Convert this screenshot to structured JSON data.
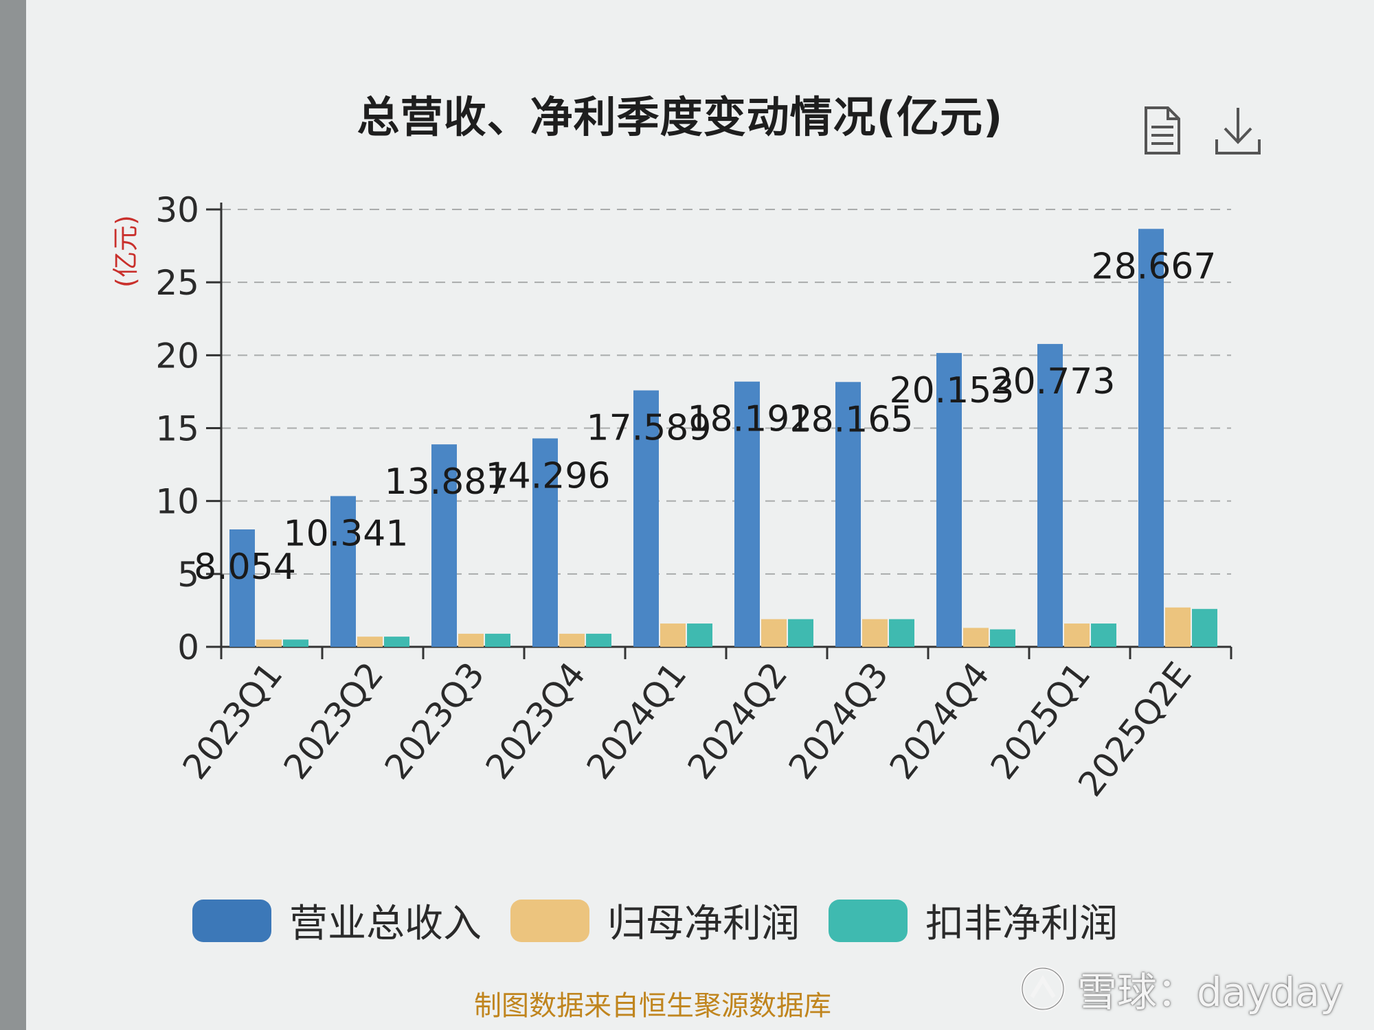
{
  "title": "总营收、净利季度变动情况(亿元)",
  "toolbar": {
    "data_view_icon": "document-icon",
    "download_icon": "download-icon"
  },
  "colors": {
    "revenue": "#4a86c5",
    "net_profit": "#ecc47e",
    "deducted_profit": "#3fbab0",
    "unit_label": "#c9302c",
    "source": "#c0851e"
  },
  "source_note": "制图数据来自恒生聚源数据库",
  "watermark": {
    "icon": "snowball-logo-icon",
    "text": "雪球：dayday"
  },
  "chart_data": {
    "type": "bar",
    "ylabel": "(亿元)",
    "ylim": [
      0,
      30
    ],
    "yticks": [
      "0",
      "5",
      "10",
      "15",
      "20",
      "25",
      "30"
    ],
    "grid": true,
    "legend_position": "bottom",
    "categories": [
      "2023Q1",
      "2023Q2",
      "2023Q3",
      "2023Q4",
      "2024Q1",
      "2024Q2",
      "2024Q3",
      "2024Q4",
      "2025Q1",
      "2025Q2E"
    ],
    "series": [
      {
        "name": "营业总收入",
        "values": [
          8.054,
          10.341,
          13.887,
          14.296,
          17.589,
          18.192,
          18.165,
          20.153,
          20.773,
          28.667
        ],
        "labels": [
          "8.054",
          "10.341",
          "13.887",
          "14.296",
          "17.589",
          "18.192",
          "18.165",
          "20.153",
          "20.773",
          "28.667"
        ]
      },
      {
        "name": "归母净利润",
        "values": [
          0.5,
          0.7,
          0.9,
          0.9,
          1.6,
          1.9,
          1.9,
          1.3,
          1.6,
          2.7
        ]
      },
      {
        "name": "扣非净利润",
        "values": [
          0.5,
          0.7,
          0.9,
          0.9,
          1.6,
          1.9,
          1.9,
          1.2,
          1.6,
          2.6
        ]
      }
    ]
  }
}
